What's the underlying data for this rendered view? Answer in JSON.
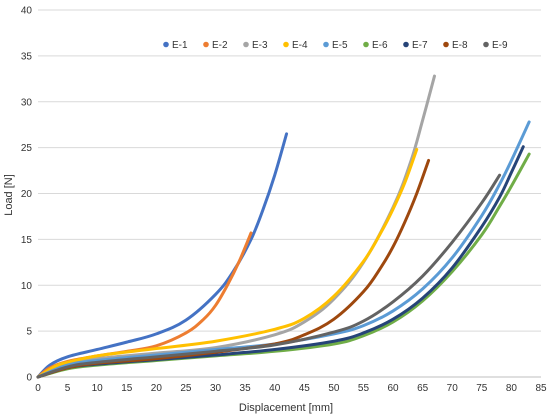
{
  "chart_data": {
    "type": "line",
    "xlabel": "Displacement [mm]",
    "ylabel": "Load [N]",
    "xlim": [
      0,
      85
    ],
    "ylim": [
      0,
      40
    ],
    "xticks": [
      0,
      5,
      10,
      15,
      20,
      25,
      30,
      35,
      40,
      45,
      50,
      55,
      60,
      65,
      70,
      75,
      80,
      85
    ],
    "yticks": [
      0,
      5,
      10,
      15,
      20,
      25,
      30,
      35,
      40
    ],
    "grid": "horizontal",
    "legend": "top-center",
    "series": [
      {
        "name": "E-1",
        "color": "#4472C4",
        "x": [
          0,
          2,
          5,
          10,
          15,
          20,
          25,
          30,
          33,
          36,
          38,
          40,
          42
        ],
        "y": [
          0,
          1.3,
          2.2,
          3.0,
          3.8,
          4.7,
          6.2,
          9.0,
          11.5,
          15.0,
          18.2,
          22.0,
          26.5
        ]
      },
      {
        "name": "E-2",
        "color": "#ED7D31",
        "x": [
          0,
          2,
          5,
          10,
          15,
          20,
          25,
          28,
          30,
          32,
          34,
          36
        ],
        "y": [
          0,
          1.0,
          1.7,
          2.3,
          2.8,
          3.4,
          4.8,
          6.3,
          7.8,
          10.0,
          12.6,
          15.7
        ]
      },
      {
        "name": "E-3",
        "color": "#A5A5A5",
        "x": [
          0,
          3,
          5,
          10,
          20,
          30,
          40,
          45,
          50,
          55,
          60,
          63,
          65,
          67
        ],
        "y": [
          0,
          1.1,
          1.5,
          2.0,
          2.6,
          3.2,
          4.6,
          6.0,
          8.5,
          12.5,
          18.5,
          23.5,
          28.0,
          32.8
        ]
      },
      {
        "name": "E-4",
        "color": "#FFC000",
        "x": [
          0,
          3,
          5,
          10,
          20,
          30,
          40,
          45,
          50,
          55,
          58,
          60,
          62,
          64
        ],
        "y": [
          0,
          1.2,
          1.6,
          2.3,
          3.1,
          3.9,
          5.2,
          6.4,
          8.8,
          12.6,
          15.8,
          18.3,
          21.2,
          24.8
        ]
      },
      {
        "name": "E-5",
        "color": "#5B9BD5",
        "x": [
          0,
          5,
          10,
          20,
          30,
          40,
          50,
          55,
          60,
          65,
          70,
          75,
          78,
          80,
          83
        ],
        "y": [
          0,
          1.3,
          1.8,
          2.4,
          3.0,
          3.6,
          4.7,
          5.6,
          7.2,
          9.6,
          13.0,
          17.6,
          21.0,
          23.6,
          27.8
        ]
      },
      {
        "name": "E-6",
        "color": "#70AD47",
        "x": [
          0,
          5,
          10,
          20,
          30,
          40,
          50,
          55,
          60,
          65,
          70,
          75,
          78,
          80,
          83
        ],
        "y": [
          0,
          0.9,
          1.3,
          1.8,
          2.3,
          2.8,
          3.6,
          4.5,
          6.0,
          8.3,
          11.5,
          15.5,
          18.6,
          20.8,
          24.3
        ]
      },
      {
        "name": "E-7",
        "color": "#264478",
        "x": [
          0,
          5,
          10,
          20,
          30,
          40,
          50,
          55,
          60,
          65,
          70,
          75,
          78,
          80,
          82
        ],
        "y": [
          0,
          1.0,
          1.4,
          1.9,
          2.4,
          3.0,
          3.9,
          4.8,
          6.3,
          8.6,
          11.9,
          16.4,
          19.6,
          22.3,
          25.1
        ]
      },
      {
        "name": "E-8",
        "color": "#9E480E",
        "x": [
          0,
          5,
          10,
          20,
          30,
          40,
          45,
          50,
          55,
          58,
          60,
          62,
          64,
          66
        ],
        "y": [
          0,
          1.0,
          1.5,
          2.0,
          2.7,
          3.6,
          4.6,
          6.3,
          9.3,
          12.0,
          14.2,
          16.9,
          20.0,
          23.6
        ]
      },
      {
        "name": "E-9",
        "color": "#636363",
        "x": [
          0,
          5,
          10,
          20,
          30,
          40,
          50,
          55,
          60,
          65,
          70,
          75,
          78
        ],
        "y": [
          0,
          1.1,
          1.6,
          2.2,
          2.8,
          3.5,
          4.9,
          6.1,
          8.2,
          11.0,
          14.7,
          19.0,
          22.0
        ]
      }
    ]
  }
}
